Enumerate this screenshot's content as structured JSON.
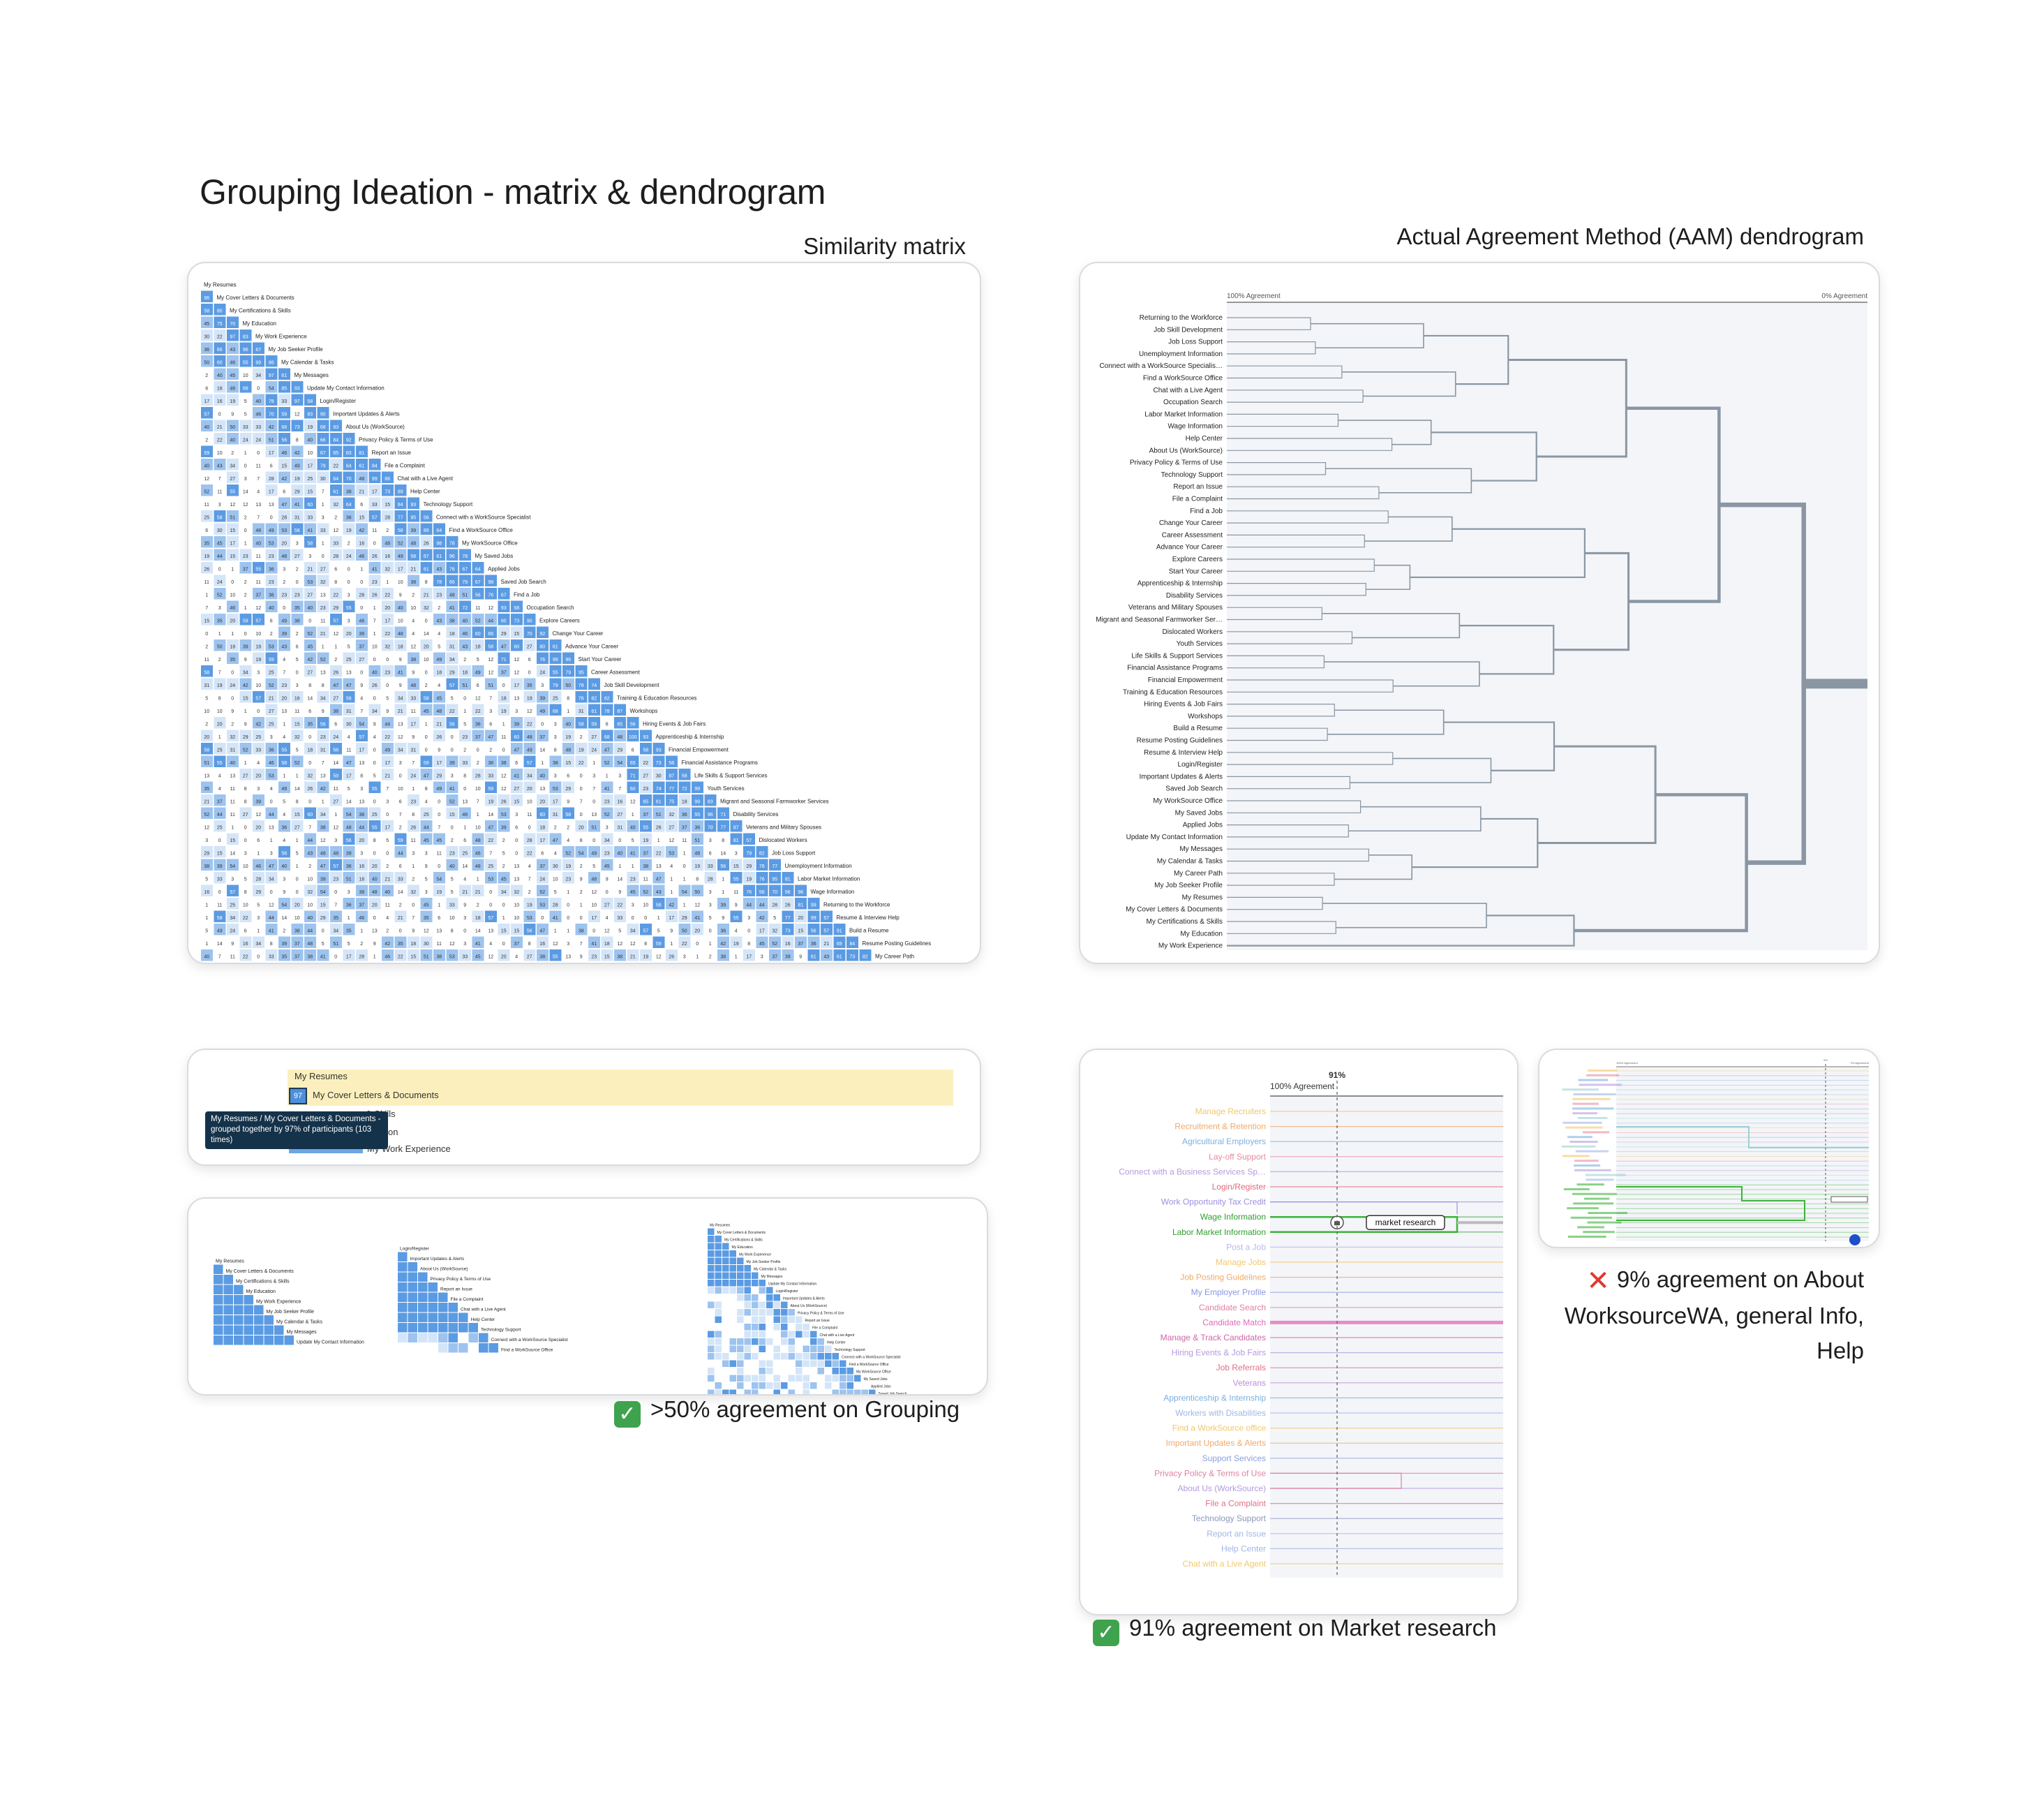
{
  "page": {
    "title": "Grouping Ideation - matrix & dendrogram",
    "similarity_caption": "Similarity matrix",
    "dendrogram_caption": "Actual Agreement Method (AAM) dendrogram"
  },
  "colors": {
    "cell_dark": "#5b9be3",
    "cell_mid": "#9dc3ef",
    "cell_light": "#d4e5f8",
    "line": "#8a96a3",
    "highlight_yellow": "#fbf0bd",
    "tooltip": "#14324a",
    "green": "#3db33a",
    "pink": "#e9a5c7"
  },
  "matrix": {
    "labels": [
      "My Resumes",
      "My Cover Letters & Documents",
      "My Certifications & Skills",
      "My Education",
      "My Work Experience",
      "My Job Seeker Profile",
      "My Calendar & Tasks",
      "My Messages",
      "Update My Contact Information",
      "Login/Register",
      "Important Updates & Alerts",
      "About Us (WorkSource)",
      "Privacy Policy & Terms of Use",
      "Report an Issue",
      "File a Complaint",
      "Chat with a Live Agent",
      "Help Center",
      "Technology Support",
      "Connect with a WorkSource Specialist",
      "Find a WorkSource Office",
      "My WorkSource Office",
      "My Saved Jobs",
      "Applied Jobs",
      "Saved Job Search",
      "Find a Job",
      "Occupation Search",
      "Explore Careers",
      "Change Your Career",
      "Advance Your Career",
      "Start Your Career",
      "Career Assessment",
      "Job Skill Development",
      "Training & Education Resources",
      "Workshops",
      "Hiring Events & Job Fairs",
      "Apprenticeship & Internship",
      "Financial Empowerment",
      "Financial Assistance Programs",
      "Life Skills & Support Services",
      "Youth Services",
      "Migrant and Seasonal Farmworker Services",
      "Disability Services",
      "Veterans and Military Spouses",
      "Dislocated Workers",
      "Job Loss Support",
      "Unemployment Information",
      "Labor Market Information",
      "Wage Information",
      "Returning to the Workforce",
      "Resume & Interview Help",
      "Build a Resume",
      "Resume Posting Guidelines",
      "My Career Path"
    ]
  },
  "dendrogram": {
    "left_label": "100% Agreement",
    "right_label": "0% Agreement",
    "labels": [
      "Returning to the Workforce",
      "Job Skill Development",
      "Job Loss Support",
      "Unemployment Information",
      "Connect with a WorkSource Specialis…",
      "Find a WorkSource Office",
      "Chat with a Live Agent",
      "Occupation Search",
      "Labor Market Information",
      "Wage Information",
      "Help Center",
      "About Us (WorkSource)",
      "Privacy Policy & Terms of Use",
      "Technology Support",
      "Report an Issue",
      "File a Complaint",
      "Find a Job",
      "Change Your Career",
      "Career Assessment",
      "Advance Your Career",
      "Explore Careers",
      "Start Your Career",
      "Apprenticeship & Internship",
      "Disability Services",
      "Veterans and Military Spouses",
      "Migrant and Seasonal Farmworker Ser…",
      "Dislocated Workers",
      "Youth Services",
      "Life Skills & Support Services",
      "Financial Assistance Programs",
      "Financial Empowerment",
      "Training & Education Resources",
      "Hiring Events & Job Fairs",
      "Workshops",
      "Build a Resume",
      "Resume Posting Guidelines",
      "Resume & Interview Help",
      "Login/Register",
      "Important Updates & Alerts",
      "Saved Job Search",
      "My WorkSource Office",
      "My Saved Jobs",
      "Applied Jobs",
      "Update My Contact Information",
      "My Messages",
      "My Calendar & Tasks",
      "My Career Path",
      "My Job Seeker Profile",
      "My Resumes",
      "My Cover Letters & Documents",
      "My Certifications & Skills",
      "My Education",
      "My Work Experience"
    ]
  },
  "zoom": {
    "row1": "My Resumes",
    "row2": "My Cover Letters & Documents",
    "row2_value": "97",
    "row3": "& Skills",
    "row4": "on",
    "row5": "My Work Experience",
    "tooltip": "My Resumes / My Cover Letters & Documents - grouped together by 97% of participants (103 times)"
  },
  "groups": {
    "a": [
      "My Resumes",
      "My Cover Letters & Documents",
      "My Certifications & Skills",
      "My Education",
      "My Work Experience",
      "My Job Seeker Profile",
      "My Calendar & Tasks",
      "My Messages",
      "Update My Contact Information"
    ],
    "b": [
      "Login/Register",
      "Important Updates & Alerts",
      "About Us (WorkSource)",
      "Privacy Policy & Terms of Use",
      "Report an Issue",
      "File a Complaint",
      "Chat with a Live Agent",
      "Help Center",
      "Technology Support",
      "Connect with a WorkSource Specialist",
      "Find a WorkSource Office"
    ],
    "c": [
      "My Resumes",
      "My Cover Letters & Documents",
      "My Certifications & Skills",
      "My Education",
      "My Work Experience",
      "My Job Seeker Profile",
      "My Calendar & Tasks",
      "My Messages",
      "Update My Contact Information",
      "Login/Register",
      "Important Updates & Alerts",
      "About Us (WorkSource)",
      "Privacy Policy & Terms of Use",
      "Report an Issue",
      "File a Complaint",
      "Chat with a Live Agent",
      "Help Center",
      "Technology Support",
      "Connect with a WorkSource Specialist",
      "Find a WorkSource Office",
      "My WorkSource Office",
      "My Saved Jobs",
      "Applied Jobs",
      "Saved Job Search"
    ]
  },
  "market": {
    "pct": "91%",
    "agreement": "100% Agreement",
    "label": "market research",
    "labels": [
      "Manage Recruiters",
      "Recruitment & Retention",
      "Agricultural Employers",
      "Lay-off Support",
      "Connect with a Business Services Sp…",
      "Login/Register",
      "Work Opportunity Tax Credit",
      "Wage Information",
      "Labor Market Information",
      "Post a Job",
      "Manage Jobs",
      "Job Posting Guidelines",
      "My Employer Profile",
      "Candidate Search",
      "Candidate Match",
      "Manage & Track Candidates",
      "Hiring Events & Job Fairs",
      "Job Referrals",
      "Veterans",
      "Apprenticeship & Internship",
      "Workers with Disabilities",
      "Find a WorkSource office",
      "Important Updates & Alerts",
      "Support Services",
      "Privacy Policy & Terms of Use",
      "About Us (WorkSource)",
      "File a Complaint",
      "Technology Support",
      "Report an Issue",
      "Help Center",
      "Chat with a Live Agent"
    ],
    "label_colors": [
      "#f2c76b",
      "#f0a96b",
      "#7ab0e0",
      "#e88aa0",
      "#b49ae0",
      "#e06a82",
      "#9d8fe0",
      "#2f9e2f",
      "#2f9e2f",
      "#b9b7e6",
      "#f2c76b",
      "#f0a96b",
      "#8a96e0",
      "#e07fa2",
      "#e06ab8",
      "#d066a8",
      "#b49ae0",
      "#e0708a",
      "#c08ae0",
      "#7ab0e0",
      "#a0b6e6",
      "#f2c76b",
      "#f0a96b",
      "#8aa0e0",
      "#e07fa2",
      "#b49ae0",
      "#e0708a",
      "#8a96c0",
      "#a0b6e6",
      "#a0b6e6",
      "#f2c76b"
    ]
  },
  "small_dendrogram": {
    "top_left": "100% Agreement",
    "top_mid": "9%",
    "top_right": "0% Agreement"
  },
  "verdicts": {
    "grouping": ">50% agreement on Grouping",
    "market": "91% agreement on Market research",
    "about": "9% agreement on About WorksourceWA, general Info, Help",
    "about_l1": "9% agreement on About",
    "about_l2": "WorksourceWA, general Info,",
    "about_l3": "Help"
  }
}
